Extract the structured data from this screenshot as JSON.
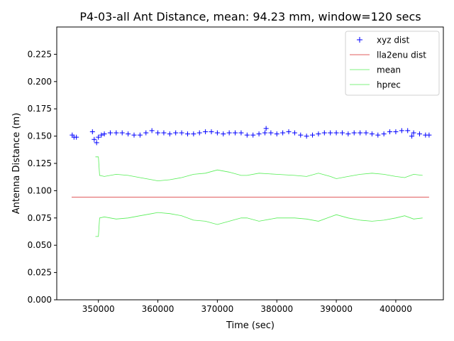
{
  "chart_data": {
    "type": "line",
    "title": "P4-03-all Ant Distance, mean: 94.23 mm, window=120 secs",
    "xlabel": "Time (sec)",
    "ylabel": "Antenna Distance (m)",
    "xlim": [
      343000,
      408000
    ],
    "ylim": [
      0.0,
      0.25
    ],
    "xticks": [
      350000,
      360000,
      370000,
      380000,
      390000,
      400000
    ],
    "xtick_labels": [
      "350000",
      "360000",
      "370000",
      "380000",
      "390000",
      "400000"
    ],
    "yticks": [
      0.0,
      0.025,
      0.05,
      0.075,
      0.1,
      0.125,
      0.15,
      0.175,
      0.2,
      0.225
    ],
    "ytick_labels": [
      "0.000",
      "0.025",
      "0.050",
      "0.075",
      "0.100",
      "0.125",
      "0.150",
      "0.175",
      "0.200",
      "0.225"
    ],
    "grid": false,
    "legend_position": "top-right",
    "series": [
      {
        "name": "xyz dist",
        "style": "markers",
        "marker": "+",
        "color": "#0000ff",
        "x": [
          345600,
          345900,
          346300,
          349000,
          349300,
          349700,
          350000,
          350500,
          351000,
          352000,
          353000,
          354000,
          355000,
          356000,
          357000,
          358000,
          359000,
          360000,
          361000,
          362000,
          363000,
          364000,
          365000,
          366000,
          367000,
          368000,
          369000,
          370000,
          371000,
          372000,
          373000,
          374000,
          375000,
          376000,
          377000,
          378000,
          378200,
          379000,
          380000,
          381000,
          382000,
          383000,
          384000,
          385000,
          386000,
          387000,
          388000,
          389000,
          390000,
          391000,
          392000,
          393000,
          394000,
          395000,
          396000,
          397000,
          398000,
          399000,
          400000,
          401000,
          402000,
          402700,
          403000,
          404000,
          405000,
          405600
        ],
        "y": [
          0.151,
          0.149,
          0.149,
          0.154,
          0.147,
          0.144,
          0.149,
          0.151,
          0.152,
          0.153,
          0.153,
          0.153,
          0.152,
          0.151,
          0.151,
          0.153,
          0.155,
          0.153,
          0.153,
          0.152,
          0.153,
          0.153,
          0.152,
          0.152,
          0.153,
          0.154,
          0.154,
          0.153,
          0.152,
          0.153,
          0.153,
          0.153,
          0.151,
          0.151,
          0.152,
          0.153,
          0.157,
          0.153,
          0.152,
          0.153,
          0.154,
          0.153,
          0.151,
          0.15,
          0.151,
          0.152,
          0.153,
          0.153,
          0.153,
          0.153,
          0.152,
          0.153,
          0.153,
          0.153,
          0.152,
          0.151,
          0.152,
          0.154,
          0.154,
          0.155,
          0.155,
          0.15,
          0.153,
          0.152,
          0.151,
          0.151
        ]
      },
      {
        "name": "lla2enu dist",
        "style": "line",
        "color": "#d62728",
        "x": [
          345500,
          405600
        ],
        "y": [
          0.094,
          0.094
        ]
      },
      {
        "name": "mean",
        "style": "line",
        "color": "#55ee55",
        "x": [
          349500,
          350000,
          350200,
          351000,
          353000,
          355000,
          357000,
          359000,
          360000,
          362000,
          364000,
          366000,
          368000,
          370000,
          372000,
          374000,
          375000,
          377000,
          380000,
          383000,
          385000,
          387000,
          389000,
          390000,
          392000,
          394000,
          396000,
          398000,
          400000,
          401500,
          403000,
          404500
        ],
        "y": [
          0.131,
          0.131,
          0.114,
          0.113,
          0.115,
          0.114,
          0.112,
          0.11,
          0.109,
          0.11,
          0.112,
          0.115,
          0.116,
          0.119,
          0.117,
          0.114,
          0.114,
          0.116,
          0.115,
          0.114,
          0.113,
          0.116,
          0.113,
          0.111,
          0.113,
          0.115,
          0.116,
          0.115,
          0.113,
          0.112,
          0.115,
          0.114
        ]
      },
      {
        "name": "hprec",
        "style": "line",
        "color": "#55ee55",
        "x": [
          349500,
          350000,
          350200,
          351000,
          353000,
          355000,
          357000,
          359000,
          360000,
          362000,
          364000,
          366000,
          368000,
          370000,
          372000,
          374000,
          375000,
          377000,
          380000,
          383000,
          385000,
          387000,
          389000,
          390000,
          392000,
          394000,
          396000,
          398000,
          400000,
          401500,
          403000,
          404500
        ],
        "y": [
          0.058,
          0.058,
          0.075,
          0.076,
          0.074,
          0.075,
          0.077,
          0.079,
          0.08,
          0.079,
          0.077,
          0.073,
          0.072,
          0.069,
          0.072,
          0.075,
          0.075,
          0.072,
          0.075,
          0.075,
          0.074,
          0.072,
          0.076,
          0.078,
          0.075,
          0.073,
          0.072,
          0.073,
          0.075,
          0.077,
          0.074,
          0.075
        ]
      }
    ]
  }
}
